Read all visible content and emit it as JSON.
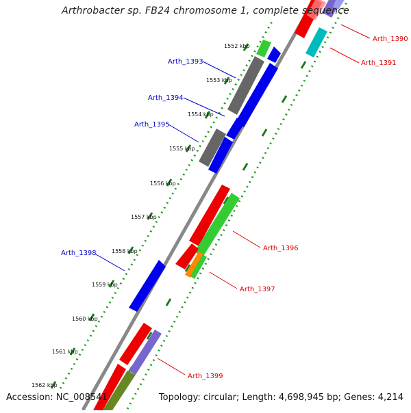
{
  "title": "Arthrobacter sp. FB24 chromosome 1, complete sequence",
  "accession": "Accession: NC_008541",
  "summary": "Topology: circular; Length: 4,698,945 bp; Genes: 4,214",
  "colors": {
    "backbone": "#808080",
    "forward_label": "#0000cc",
    "reverse_label": "#dd0000",
    "tick_dots": "#229922",
    "gene_blue": "#0000ee",
    "gene_gray": "#666666",
    "gene_green": "#33cc33",
    "gene_red": "#ee0000",
    "gene_cyan": "#00bbbb",
    "gene_orange": "#ff8800",
    "gene_purple": "#7766cc",
    "gene_olive": "#668822"
  },
  "kbp_ticks": [
    "1552 kbp",
    "1553 kbp",
    "1554 kbp",
    "1555 kbp",
    "1556 kbp",
    "1557 kbp",
    "1558 kbp",
    "1559 kbp",
    "1560 kbp",
    "1561 kbp",
    "1562 kbp"
  ],
  "gene_labels": [
    {
      "name": "Arth_1390",
      "strand": "reverse"
    },
    {
      "name": "Arth_1391",
      "strand": "reverse"
    },
    {
      "name": "Arth_1393",
      "strand": "forward"
    },
    {
      "name": "Arth_1394",
      "strand": "forward"
    },
    {
      "name": "Arth_1395",
      "strand": "forward"
    },
    {
      "name": "Arth_1396",
      "strand": "reverse"
    },
    {
      "name": "Arth_1397",
      "strand": "reverse"
    },
    {
      "name": "Arth_1398",
      "strand": "forward"
    },
    {
      "name": "Arth_1399",
      "strand": "reverse"
    }
  ]
}
